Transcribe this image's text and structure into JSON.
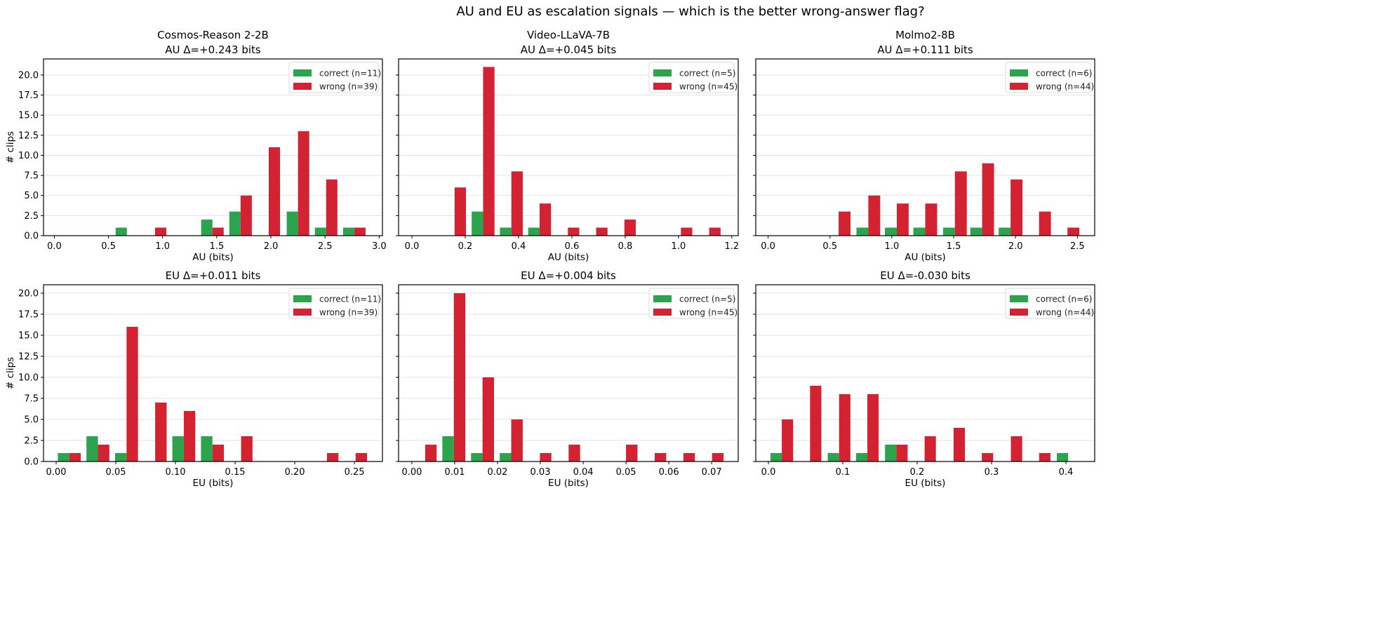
{
  "title": "AU and EU as escalation signals — which is the better wrong-answer flag?",
  "colors": {
    "correct": "#2ca44e",
    "wrong": "#d32232"
  },
  "chart_data": [
    {
      "type": "bar",
      "model": "Cosmos-Reason 2-2B",
      "title": "AU Δ=+0.243 bits",
      "xlabel": "AU (bits)",
      "ylabel": "# clips",
      "xlim": [
        -0.1,
        3.03
      ],
      "ylim": [
        0,
        22
      ],
      "grid": "y",
      "legend": "top-right",
      "xticks": [
        "0.0",
        "0.5",
        "1.0",
        "1.5",
        "2.0",
        "2.5",
        "3.0"
      ],
      "xtick_values": [
        0,
        0.5,
        1,
        1.5,
        2,
        2.5,
        3
      ],
      "bin_centers": [
        0.67,
        0.93,
        1.2,
        1.46,
        1.72,
        1.98,
        2.25,
        2.51,
        2.77
      ],
      "series": [
        {
          "name": "correct (n=11)",
          "values": [
            1,
            0,
            0,
            2,
            3,
            0,
            3,
            1,
            1
          ]
        },
        {
          "name": "wrong (n=39)",
          "values": [
            0,
            1,
            0,
            1,
            5,
            11,
            13,
            7,
            1
          ]
        }
      ]
    },
    {
      "type": "bar",
      "model": "Video-LLaVA-7B",
      "title": "AU Δ=+0.045 bits",
      "xlabel": "AU (bits)",
      "ylabel": "",
      "xlim": [
        -0.05,
        1.224
      ],
      "ylim": [
        0,
        22
      ],
      "grid": "y",
      "legend": "top-right",
      "xticks": [
        "0.0",
        "0.2",
        "0.4",
        "0.6",
        "0.8",
        "1.0",
        "1.2"
      ],
      "xtick_values": [
        0,
        0.2,
        0.4,
        0.6,
        0.8,
        1.0,
        1.2
      ],
      "bin_centers": [
        0.16,
        0.267,
        0.373,
        0.479,
        0.585,
        0.691,
        0.797,
        0.903,
        1.009,
        1.115
      ],
      "series": [
        {
          "name": "correct (n=5)",
          "values": [
            0,
            3,
            1,
            1,
            0,
            0,
            0,
            0,
            0,
            0
          ]
        },
        {
          "name": "wrong (n=45)",
          "values": [
            6,
            21,
            8,
            4,
            1,
            1,
            2,
            0,
            1,
            1
          ]
        }
      ]
    },
    {
      "type": "bar",
      "model": "Molmo2-8B",
      "title": "AU Δ=+0.111 bits",
      "xlabel": "AU (bits)",
      "ylabel": "",
      "xlim": [
        -0.1,
        2.64
      ],
      "ylim": [
        0,
        22
      ],
      "grid": "y",
      "legend": "top-right",
      "xticks": [
        "0.0",
        "0.5",
        "1.0",
        "1.5",
        "2.0",
        "2.5"
      ],
      "xtick_values": [
        0,
        0.5,
        1,
        1.5,
        2,
        2.5
      ],
      "bin_centers": [
        0.57,
        0.81,
        1.04,
        1.27,
        1.51,
        1.73,
        1.96,
        2.19,
        2.42
      ],
      "series": [
        {
          "name": "correct (n=6)",
          "values": [
            0,
            1,
            1,
            1,
            1,
            1,
            1,
            0,
            0
          ]
        },
        {
          "name": "wrong (n=44)",
          "values": [
            3,
            5,
            4,
            4,
            8,
            9,
            7,
            3,
            1
          ]
        }
      ]
    },
    {
      "type": "bar",
      "model": "",
      "title": "EU Δ=+0.011 bits",
      "xlabel": "EU (bits)",
      "ylabel": "# clips",
      "xlim": [
        -0.0106,
        0.2735
      ],
      "ylim": [
        0,
        21
      ],
      "grid": "y",
      "legend": "top-right",
      "xticks": [
        "0.00",
        "0.05",
        "0.10",
        "0.15",
        "0.20",
        "0.25"
      ],
      "xtick_values": [
        0,
        0.05,
        0.1,
        0.15,
        0.2,
        0.25
      ],
      "bin_centers": [
        0.011,
        0.035,
        0.059,
        0.083,
        0.107,
        0.131,
        0.155,
        0.179,
        0.203,
        0.227,
        0.251
      ],
      "series": [
        {
          "name": "correct (n=11)",
          "values": [
            1,
            3,
            1,
            0,
            3,
            3,
            0,
            0,
            0,
            0,
            0
          ]
        },
        {
          "name": "wrong (n=39)",
          "values": [
            1,
            2,
            16,
            7,
            6,
            2,
            3,
            0,
            0,
            1,
            1
          ]
        }
      ]
    },
    {
      "type": "bar",
      "model": "",
      "title": "EU Δ=+0.004 bits",
      "xlabel": "EU (bits)",
      "ylabel": "",
      "xlim": [
        -0.0031,
        0.0762
      ],
      "ylim": [
        0,
        21
      ],
      "grid": "y",
      "legend": "top-right",
      "xticks": [
        "0.00",
        "0.01",
        "0.02",
        "0.03",
        "0.04",
        "0.05",
        "0.06",
        "0.07"
      ],
      "xtick_values": [
        0,
        0.01,
        0.02,
        0.03,
        0.04,
        0.05,
        0.06,
        0.07
      ],
      "bin_centers": [
        0.0031,
        0.0098,
        0.0165,
        0.0232,
        0.0299,
        0.0366,
        0.0433,
        0.05,
        0.0567,
        0.0634,
        0.0701
      ],
      "series": [
        {
          "name": "correct (n=5)",
          "values": [
            0,
            3,
            1,
            1,
            0,
            0,
            0,
            0,
            0,
            0,
            0
          ]
        },
        {
          "name": "wrong (n=45)",
          "values": [
            2,
            20,
            10,
            5,
            1,
            2,
            0,
            2,
            1,
            1,
            1
          ]
        }
      ]
    },
    {
      "type": "bar",
      "model": "",
      "title": "EU Δ=-0.030 bits",
      "xlabel": "EU (bits)",
      "ylabel": "",
      "xlim": [
        -0.017,
        0.4387
      ],
      "ylim": [
        0,
        21
      ],
      "grid": "y",
      "legend": "top-right",
      "xticks": [
        "0.0",
        "0.1",
        "0.2",
        "0.3",
        "0.4"
      ],
      "xtick_values": [
        0,
        0.1,
        0.2,
        0.3,
        0.4
      ],
      "bin_centers": [
        0.018,
        0.056,
        0.095,
        0.133,
        0.172,
        0.21,
        0.249,
        0.287,
        0.326,
        0.364,
        0.403
      ],
      "series": [
        {
          "name": "correct (n=6)",
          "values": [
            1,
            0,
            1,
            1,
            2,
            0,
            0,
            0,
            0,
            0,
            1
          ]
        },
        {
          "name": "wrong (n=44)",
          "values": [
            5,
            9,
            8,
            8,
            2,
            3,
            4,
            1,
            3,
            1,
            0
          ]
        }
      ]
    }
  ],
  "yticks": [
    "0.0",
    "2.5",
    "5.0",
    "7.5",
    "10.0",
    "12.5",
    "15.0",
    "17.5",
    "20.0"
  ]
}
